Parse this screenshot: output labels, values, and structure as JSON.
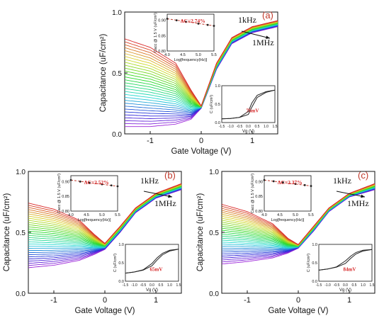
{
  "panels": [
    {
      "letter": "(a)",
      "freq_high": "1kHz",
      "freq_low": "1MHz",
      "ylabel": "Capacitance (uF/cm²)",
      "xlabel": "Gate Voltage (V)",
      "x_ticks": [
        "-1",
        "0",
        "1"
      ],
      "y_ticks": [
        "0.0",
        "0.5",
        "1.0"
      ],
      "inset1": {
        "delta": "ΔC=2.74%",
        "ylabel": "Cacc @ 1.5 V (uF/cm²)",
        "xlabel": "Log[frequency(Hz)]",
        "y_ticks": [
          "0.80",
          "0.85",
          "0.90"
        ],
        "x_ticks": [
          "4.0",
          "4.5",
          "5.0",
          "5.5"
        ]
      },
      "inset2": {
        "label": "76mV",
        "ylabel": "C (uF/cm²)",
        "xlabel": "Vg (V)",
        "y_ticks": [
          "0.0",
          "0.5",
          "1.0"
        ],
        "x_ticks": [
          "-1.5",
          "-1.0",
          "-0.5",
          "0.0",
          "0.5",
          "1.0",
          "1.5"
        ]
      }
    },
    {
      "letter": "(b)",
      "freq_high": "1kHz",
      "freq_low": "1MHz",
      "ylabel": "Capacitance (uF/cm²)",
      "xlabel": "Gate Voltage (V)",
      "x_ticks": [
        "-1",
        "0",
        "1"
      ],
      "y_ticks": [
        "0.0",
        "0.5",
        "1.0"
      ],
      "inset1": {
        "delta": "ΔC=2.52%",
        "ylabel": "Cacc @ 1.5 V (uF/cm²)",
        "xlabel": "Log[frequency(Hz)]",
        "y_ticks": [
          "0.80",
          "0.85",
          "0.90"
        ],
        "x_ticks": [
          "4.0",
          "4.5",
          "5.0",
          "5.5"
        ]
      },
      "inset2": {
        "label": "65mV",
        "ylabel": "C (uF/cm²)",
        "xlabel": "Vg (V)",
        "y_ticks": [
          "0.0",
          "0.5",
          "1.0"
        ],
        "x_ticks": [
          "-1.5",
          "-1.0",
          "-0.5",
          "0.0",
          "0.5",
          "1.0",
          "1.5"
        ]
      }
    },
    {
      "letter": "(c)",
      "freq_high": "1kHz",
      "freq_low": "1MHz",
      "ylabel": "Capacitance (uF/cm²)",
      "xlabel": "Gate Voltage (V)",
      "x_ticks": [
        "-1",
        "0",
        "1"
      ],
      "y_ticks": [
        "0.0",
        "0.5",
        "1.0"
      ],
      "inset1": {
        "delta": "ΔC=2.37%",
        "ylabel": "Cacc @ 1.5 V (uF/cm²)",
        "xlabel": "Log[frequency(Hz)]",
        "y_ticks": [
          "0.80",
          "0.85",
          "0.90"
        ],
        "x_ticks": [
          "4.0",
          "4.5",
          "5.0",
          "5.5"
        ]
      },
      "inset2": {
        "label": "84mV",
        "ylabel": "C (uF/cm²)",
        "xlabel": "Vg (V)",
        "y_ticks": [
          "0.0",
          "0.5",
          "1.0"
        ],
        "x_ticks": [
          "-1.5",
          "-1.0",
          "-0.5",
          "0.0",
          "0.5",
          "1.0",
          "1.5"
        ]
      }
    }
  ],
  "chart_data": [
    {
      "type": "line",
      "panel": "(a)",
      "xlabel": "Gate Voltage (V)",
      "ylabel": "Capacitance (uF/cm²)",
      "xlim": [
        -1.5,
        1.5
      ],
      "ylim": [
        0.0,
        1.0
      ],
      "curve_count": 31,
      "series_envelope": [
        {
          "name": "1kHz",
          "x": [
            -1.5,
            -1.0,
            -0.5,
            -0.2,
            0.0,
            0.3,
            0.6,
            1.0,
            1.5
          ],
          "values": [
            0.78,
            0.71,
            0.58,
            0.36,
            0.23,
            0.58,
            0.79,
            0.88,
            0.93
          ]
        },
        {
          "name": "1MHz",
          "x": [
            -1.5,
            -1.0,
            -0.5,
            -0.2,
            0.0,
            0.3,
            0.6,
            1.0,
            1.5
          ],
          "values": [
            0.06,
            0.06,
            0.08,
            0.12,
            0.21,
            0.53,
            0.74,
            0.83,
            0.88
          ]
        }
      ],
      "inset_frequency": {
        "x": [
          4.0,
          4.3,
          4.6,
          5.0,
          5.3,
          5.5
        ],
        "values": [
          0.905,
          0.9,
          0.895,
          0.889,
          0.885,
          0.882
        ],
        "xlim": [
          4.0,
          5.5
        ],
        "ylim": [
          0.8,
          0.92
        ]
      },
      "inset_hysteresis": {
        "label": "76mV",
        "xlim": [
          -1.5,
          1.5
        ],
        "ylim": [
          0.0,
          1.0
        ],
        "forward": {
          "x": [
            -1.5,
            -1.0,
            -0.5,
            0.0,
            0.2,
            0.5,
            1.0,
            1.5
          ],
          "values": [
            0.1,
            0.11,
            0.14,
            0.22,
            0.42,
            0.68,
            0.82,
            0.88
          ]
        },
        "reverse": {
          "x": [
            -1.5,
            -1.0,
            -0.5,
            0.0,
            0.2,
            0.5,
            1.0,
            1.5
          ],
          "values": [
            0.1,
            0.11,
            0.14,
            0.3,
            0.53,
            0.74,
            0.84,
            0.88
          ]
        }
      }
    },
    {
      "type": "line",
      "panel": "(b)",
      "xlabel": "Gate Voltage (V)",
      "ylabel": "Capacitance (uF/cm²)",
      "xlim": [
        -1.5,
        1.5
      ],
      "ylim": [
        0.0,
        1.0
      ],
      "curve_count": 31,
      "series_envelope": [
        {
          "name": "1kHz",
          "x": [
            -1.5,
            -1.0,
            -0.5,
            -0.2,
            0.0,
            0.3,
            0.6,
            1.0,
            1.5
          ],
          "values": [
            0.74,
            0.69,
            0.6,
            0.48,
            0.41,
            0.55,
            0.7,
            0.82,
            0.9
          ]
        },
        {
          "name": "1MHz",
          "x": [
            -1.5,
            -1.0,
            -0.5,
            -0.2,
            0.0,
            0.3,
            0.6,
            1.0,
            1.5
          ],
          "values": [
            0.21,
            0.23,
            0.27,
            0.32,
            0.36,
            0.5,
            0.66,
            0.78,
            0.85
          ]
        }
      ],
      "inset_frequency": {
        "x": [
          4.0,
          4.3,
          4.6,
          5.0,
          5.3,
          5.5
        ],
        "values": [
          0.905,
          0.9,
          0.896,
          0.891,
          0.887,
          0.884
        ],
        "xlim": [
          4.0,
          5.5
        ],
        "ylim": [
          0.8,
          0.92
        ]
      },
      "inset_hysteresis": {
        "label": "65mV",
        "xlim": [
          -1.5,
          1.5
        ],
        "ylim": [
          0.0,
          1.0
        ],
        "forward": {
          "x": [
            -1.5,
            -1.0,
            -0.5,
            0.0,
            0.3,
            0.6,
            1.0,
            1.5
          ],
          "values": [
            0.22,
            0.25,
            0.3,
            0.42,
            0.58,
            0.72,
            0.82,
            0.87
          ]
        },
        "reverse": {
          "x": [
            -1.5,
            -1.0,
            -0.5,
            0.0,
            0.3,
            0.6,
            1.0,
            1.5
          ],
          "values": [
            0.22,
            0.25,
            0.31,
            0.48,
            0.64,
            0.76,
            0.84,
            0.87
          ]
        }
      }
    },
    {
      "type": "line",
      "panel": "(c)",
      "xlabel": "Gate Voltage (V)",
      "ylabel": "Capacitance (uF/cm²)",
      "xlim": [
        -1.5,
        1.5
      ],
      "ylim": [
        0.0,
        1.0
      ],
      "curve_count": 31,
      "series_envelope": [
        {
          "name": "1kHz",
          "x": [
            -1.5,
            -1.0,
            -0.5,
            -0.2,
            0.0,
            0.3,
            0.6,
            1.0,
            1.5
          ],
          "values": [
            0.73,
            0.67,
            0.57,
            0.45,
            0.4,
            0.55,
            0.7,
            0.82,
            0.9
          ]
        },
        {
          "name": "1MHz",
          "x": [
            -1.5,
            -1.0,
            -0.5,
            -0.2,
            0.0,
            0.3,
            0.6,
            1.0,
            1.5
          ],
          "values": [
            0.24,
            0.26,
            0.29,
            0.33,
            0.37,
            0.51,
            0.67,
            0.79,
            0.85
          ]
        }
      ],
      "inset_frequency": {
        "x": [
          4.0,
          4.3,
          4.6,
          5.0,
          5.3,
          5.5
        ],
        "values": [
          0.905,
          0.901,
          0.897,
          0.892,
          0.888,
          0.885
        ],
        "xlim": [
          4.0,
          5.5
        ],
        "ylim": [
          0.8,
          0.92
        ]
      },
      "inset_hysteresis": {
        "label": "84mV",
        "xlim": [
          -1.5,
          1.5
        ],
        "ylim": [
          0.0,
          1.0
        ],
        "forward": {
          "x": [
            -1.5,
            -1.0,
            -0.5,
            0.0,
            0.3,
            0.6,
            1.0,
            1.5
          ],
          "values": [
            0.3,
            0.33,
            0.38,
            0.48,
            0.62,
            0.74,
            0.82,
            0.86
          ]
        },
        "reverse": {
          "x": [
            -1.5,
            -1.0,
            -0.5,
            0.0,
            0.3,
            0.6,
            1.0,
            1.5
          ],
          "values": [
            0.3,
            0.33,
            0.39,
            0.55,
            0.68,
            0.78,
            0.84,
            0.86
          ]
        }
      }
    }
  ]
}
